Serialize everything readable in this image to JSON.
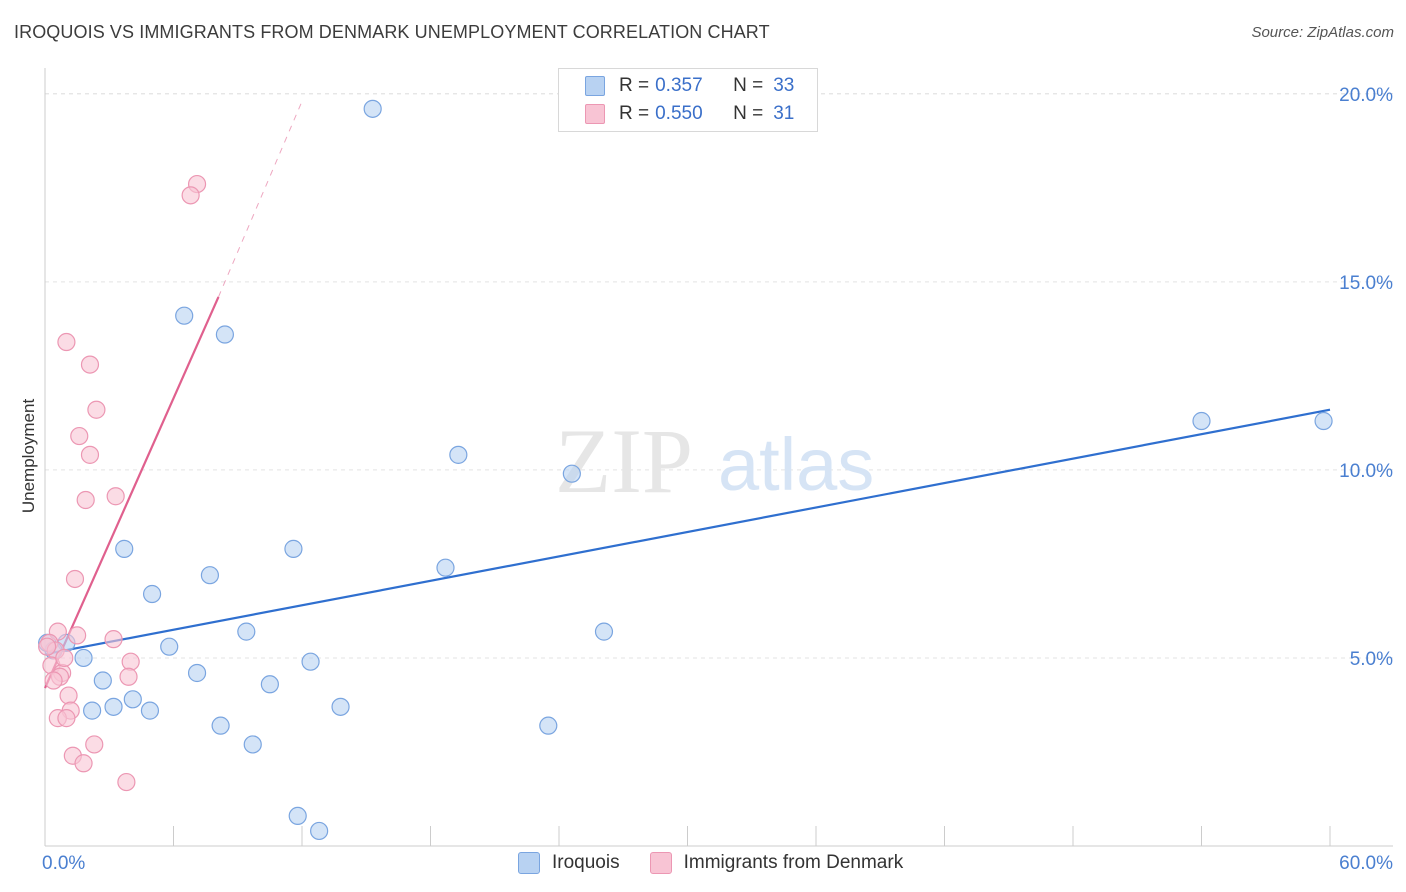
{
  "header": {
    "title": "IROQUOIS VS IMMIGRANTS FROM DENMARK UNEMPLOYMENT CORRELATION CHART",
    "source": "Source: ZipAtlas.com"
  },
  "watermark": {
    "zip": "ZIP",
    "atlas": "atlas"
  },
  "legend": {
    "rows": [
      {
        "r_label": "R =",
        "r_value": "0.357",
        "n_label": "N =",
        "n_value": "33"
      },
      {
        "r_label": "R =",
        "r_value": "0.550",
        "n_label": "N =",
        "n_value": "31"
      }
    ]
  },
  "bottom_legend": {
    "items": [
      {
        "label": "Iroquois"
      },
      {
        "label": "Immigrants from Denmark"
      }
    ]
  },
  "colors": {
    "blue_fill": "#b8d2f2",
    "blue_stroke": "#7aa5e0",
    "blue_line": "#2f6fcf",
    "pink_fill": "#f8c4d4",
    "pink_stroke": "#ec97b3",
    "pink_line": "#e0608e",
    "tick_text": "#4a7fd0",
    "grid": "#e3e3e3"
  },
  "chart_data": {
    "type": "scatter",
    "title": "IROQUOIS VS IMMIGRANTS FROM DENMARK UNEMPLOYMENT CORRELATION CHART",
    "xlabel": "",
    "ylabel": "Unemployment",
    "xlim": [
      0,
      60
    ],
    "ylim": [
      0,
      20.5
    ],
    "x_tick_labels": [
      {
        "value": 0,
        "label": "0.0%"
      },
      {
        "value": 60,
        "label": "60.0%"
      }
    ],
    "x_minor_ticks": [
      0,
      6,
      12,
      18,
      24,
      30,
      36,
      42,
      48,
      54,
      60
    ],
    "y_tick_labels": [
      {
        "value": 5,
        "label": "5.0%"
      },
      {
        "value": 10,
        "label": "10.0%"
      },
      {
        "value": 15,
        "label": "15.0%"
      },
      {
        "value": 20,
        "label": "20.0%"
      }
    ],
    "series": [
      {
        "name": "Iroquois",
        "color": "blue",
        "points": [
          [
            15.3,
            19.6
          ],
          [
            6.5,
            14.1
          ],
          [
            8.4,
            13.6
          ],
          [
            54.0,
            11.3
          ],
          [
            59.7,
            11.3
          ],
          [
            19.3,
            10.4
          ],
          [
            24.6,
            9.9
          ],
          [
            3.7,
            7.9
          ],
          [
            11.6,
            7.9
          ],
          [
            18.7,
            7.4
          ],
          [
            7.7,
            7.2
          ],
          [
            5.0,
            6.7
          ],
          [
            26.1,
            5.7
          ],
          [
            9.4,
            5.7
          ],
          [
            1.0,
            5.4
          ],
          [
            5.8,
            5.3
          ],
          [
            0.4,
            5.2
          ],
          [
            1.8,
            5.0
          ],
          [
            12.4,
            4.9
          ],
          [
            7.1,
            4.6
          ],
          [
            2.7,
            4.4
          ],
          [
            10.5,
            4.3
          ],
          [
            4.1,
            3.9
          ],
          [
            3.2,
            3.7
          ],
          [
            13.8,
            3.7
          ],
          [
            2.2,
            3.6
          ],
          [
            4.9,
            3.6
          ],
          [
            8.2,
            3.2
          ],
          [
            23.5,
            3.2
          ],
          [
            9.7,
            2.7
          ],
          [
            11.8,
            0.8
          ],
          [
            12.8,
            0.4
          ],
          [
            0.1,
            5.4
          ]
        ],
        "trend": {
          "x1": 0.0,
          "y1": 5.1,
          "x2": 60.0,
          "y2": 11.6
        }
      },
      {
        "name": "Immigrants from Denmark",
        "color": "pink",
        "points": [
          [
            7.1,
            17.6
          ],
          [
            6.8,
            17.3
          ],
          [
            1.0,
            13.4
          ],
          [
            2.1,
            12.8
          ],
          [
            2.4,
            11.6
          ],
          [
            1.6,
            10.9
          ],
          [
            2.1,
            10.4
          ],
          [
            1.9,
            9.2
          ],
          [
            3.3,
            9.3
          ],
          [
            1.4,
            7.1
          ],
          [
            3.2,
            5.5
          ],
          [
            0.6,
            5.7
          ],
          [
            1.5,
            5.6
          ],
          [
            0.2,
            5.4
          ],
          [
            0.5,
            5.2
          ],
          [
            4.0,
            4.9
          ],
          [
            0.3,
            4.8
          ],
          [
            0.8,
            4.6
          ],
          [
            0.7,
            4.5
          ],
          [
            3.9,
            4.5
          ],
          [
            0.4,
            4.4
          ],
          [
            1.1,
            4.0
          ],
          [
            1.2,
            3.6
          ],
          [
            0.6,
            3.4
          ],
          [
            1.0,
            3.4
          ],
          [
            2.3,
            2.7
          ],
          [
            1.3,
            2.4
          ],
          [
            1.8,
            2.2
          ],
          [
            3.8,
            1.7
          ],
          [
            0.1,
            5.3
          ],
          [
            0.9,
            5.0
          ]
        ],
        "trend": {
          "x1": 0.0,
          "y1": 4.2,
          "x2": 8.1,
          "y2": 14.6
        },
        "trend_extension": {
          "x1": 8.1,
          "y1": 14.6,
          "x2": 12.0,
          "y2": 19.8
        }
      }
    ]
  }
}
